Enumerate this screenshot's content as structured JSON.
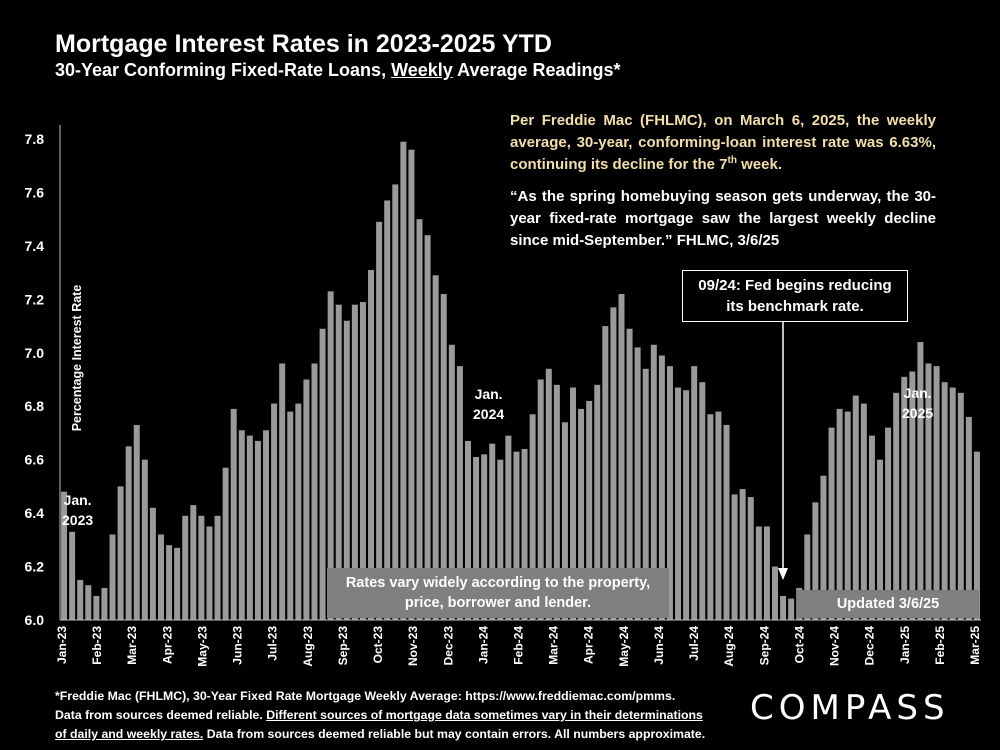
{
  "header": {
    "title": "Mortgage Interest Rates in 2023-2025 YTD",
    "subtitle_pre": "30-Year Conforming Fixed-Rate Loans, ",
    "subtitle_under": "Weekly",
    "subtitle_post": " Average Readings*"
  },
  "info": {
    "p1": "Per Freddie Mac (FHLMC), on March 6, 2025, the weekly average, 30-year, conforming-loan interest rate was 6.63%, continuing its decline for the 7",
    "p1_sup": "th",
    "p1_end": " week.",
    "p2": "“As the spring homebuying season gets underway, the 30-year fixed-rate mortgage saw the largest weekly decline since mid-September.” FHLMC, 3/6/25"
  },
  "annotations": {
    "fed_line1": "09/24: Fed begins reducing",
    "fed_line2": "its benchmark rate.",
    "rates_line1": "Rates vary widely according to the property,",
    "rates_line2": "price, borrower and lender.",
    "updated": "Updated 3/6/25",
    "jan23_a": "Jan.",
    "jan23_b": "2023",
    "jan24_a": "Jan.",
    "jan24_b": "2024",
    "jan25_a": "Jan.",
    "jan25_b": "2025"
  },
  "footnote": {
    "line1": "*Freddie Mac (FHLMC), 30-Year Fixed Rate Mortgage Weekly Average:   https://www.freddiemac.com/pmms.",
    "line2_pre": "Data from sources deemed reliable. ",
    "line2_under": "Different sources of mortgage data sometimes vary in their determinations",
    "line3_under": "of daily and weekly rates.",
    "line3_post": " Data from sources deemed reliable but may contain errors. All numbers approximate."
  },
  "logo": "COMPASS",
  "colors": {
    "bar": "#9a9a9a",
    "background": "#000000",
    "accent": "#f2dfaa",
    "box": "#7f7f7f"
  },
  "chart_data": {
    "type": "bar",
    "title": "Mortgage Interest Rates in 2023-2025 YTD",
    "ylabel": "Percentage Interest  Rate",
    "xlabel": "",
    "ylim": [
      6.0,
      7.85
    ],
    "yticks": [
      "6.0",
      "6.2",
      "6.4",
      "6.6",
      "6.8",
      "7.0",
      "7.2",
      "7.4",
      "7.6",
      "7.8"
    ],
    "month_labels": [
      "Jan-23",
      "Feb-23",
      "Mar-23",
      "Apr-23",
      "May-23",
      "Jun-23",
      "Jul-23",
      "Aug-23",
      "Sep-23",
      "Oct-23",
      "Nov-23",
      "Dec-23",
      "Jan-24",
      "Feb-24",
      "Mar-24",
      "Apr-24",
      "May-24",
      "Jun-24",
      "Jul-24",
      "Aug-24",
      "Sep-24",
      "Oct-24",
      "Nov-24",
      "Dec-24",
      "Jan-25",
      "Feb-25",
      "Mar-25"
    ],
    "series": [
      {
        "name": "30-Year Fixed Rate Weekly Average",
        "values": [
          6.48,
          6.33,
          6.15,
          6.13,
          6.09,
          6.12,
          6.32,
          6.5,
          6.65,
          6.73,
          6.6,
          6.42,
          6.32,
          6.28,
          6.27,
          6.39,
          6.43,
          6.39,
          6.35,
          6.39,
          6.57,
          6.79,
          6.71,
          6.69,
          6.67,
          6.71,
          6.81,
          6.96,
          6.78,
          6.81,
          6.9,
          6.96,
          7.09,
          7.23,
          7.18,
          7.12,
          7.18,
          7.19,
          7.31,
          7.49,
          7.57,
          7.63,
          7.79,
          7.76,
          7.5,
          7.44,
          7.29,
          7.22,
          7.03,
          6.95,
          6.67,
          6.61,
          6.62,
          6.66,
          6.6,
          6.69,
          6.63,
          6.64,
          6.77,
          6.9,
          6.94,
          6.88,
          6.74,
          6.87,
          6.79,
          6.82,
          6.88,
          7.1,
          7.17,
          7.22,
          7.09,
          7.02,
          6.94,
          7.03,
          6.99,
          6.95,
          6.87,
          6.86,
          6.95,
          6.89,
          6.77,
          6.78,
          6.73,
          6.47,
          6.49,
          6.46,
          6.35,
          6.35,
          6.2,
          6.09,
          6.08,
          6.12,
          6.32,
          6.44,
          6.54,
          6.72,
          6.79,
          6.78,
          6.84,
          6.81,
          6.69,
          6.6,
          6.72,
          6.85,
          6.91,
          6.93,
          7.04,
          6.96,
          6.95,
          6.89,
          6.87,
          6.85,
          6.76,
          6.63
        ]
      }
    ]
  }
}
